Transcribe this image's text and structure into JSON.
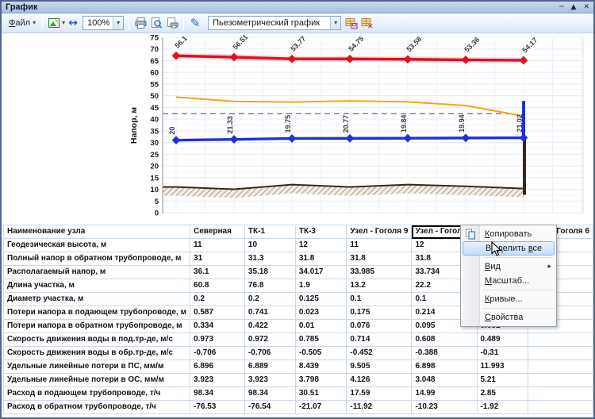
{
  "window": {
    "title": "График",
    "minimize_glyph": "─",
    "dock_glyph": "▲",
    "close_glyph": "✕"
  },
  "toolbar": {
    "file_button": {
      "pre": "",
      "key": "Ф",
      "rest": "айл"
    },
    "dropdown_glyph": "▾",
    "fit_width_glyph": "↔",
    "edit_glyph": "✎",
    "zoom_value": "100%",
    "graph_type_value": "Пьезометрический график"
  },
  "chart_data": {
    "type": "line",
    "title": "",
    "xlabel": "",
    "ylabel": "Напор, м",
    "ylim": [
      0,
      75
    ],
    "ytick_step": 5,
    "grid": true,
    "x_categories": [
      "Северная",
      "ТК-1",
      "ТК-3",
      "Узел - Гоголя 9",
      "Узел - Гоголя 9",
      "",
      "Узел - Гоголя 6"
    ],
    "series": [
      {
        "name": "supply-head-line",
        "color": "#e0101f",
        "marker": "diamond",
        "label_rotation": -45,
        "values": [
          67.1,
          66.51,
          65.77,
          65.75,
          65.58,
          65.36,
          65.17
        ],
        "labels": [
          "56.1",
          "56.51",
          "53.77",
          "54.75",
          "53.58",
          "53.36",
          "54.17"
        ]
      },
      {
        "name": "return-head-line",
        "color": "#2130d6",
        "marker": "diamond",
        "label_rotation": -90,
        "values": [
          31,
          31.33,
          31.75,
          31.77,
          31.84,
          31.94,
          32.02
        ],
        "labels": [
          "20",
          "21.33",
          "19.75",
          "20.77",
          "19.84",
          "19.94",
          "21.02"
        ]
      },
      {
        "name": "available-head-line",
        "color": "#f6a21d",
        "marker": "none",
        "values": [
          49.4,
          47.6,
          47.3,
          47.8,
          47.4,
          45.8,
          41.3
        ],
        "labels": []
      },
      {
        "name": "ground-profile",
        "color": "#3a281e",
        "marker": "none",
        "fill": "hatch",
        "values": [
          11,
          10,
          12,
          11,
          12,
          11.3,
          10.3
        ],
        "labels": []
      }
    ],
    "reference_line": {
      "value": 42.3,
      "color": "#4f81bd",
      "style": "dashed"
    },
    "end_risers": [
      {
        "name": "end-riser-blue",
        "color": "#2130d6",
        "from": 31.8,
        "to": 47.8
      },
      {
        "name": "end-riser-brown",
        "color": "#3a281e",
        "from": 32,
        "to": 10.3
      }
    ]
  },
  "table": {
    "selected_cell": {
      "row": 0,
      "col": 4
    },
    "rows": [
      {
        "label": "Наименование узла",
        "values": [
          "Северная",
          "ТК-1",
          "ТК-3",
          "Узел - Гоголя 9",
          "Узел - Гоголя 9",
          "",
          "Узел - Гоголя 6"
        ]
      },
      {
        "label": "Геодезическая высота, м",
        "values": [
          "11",
          "10",
          "12",
          "11",
          "12",
          "",
          ""
        ]
      },
      {
        "label": "Полный напор в обратном трубопроводе, м",
        "values": [
          "31",
          "31.3",
          "31.8",
          "31.8",
          "31.8",
          "",
          ""
        ]
      },
      {
        "label": "Располагаемый напор, м",
        "values": [
          "36.1",
          "35.18",
          "34.017",
          "33.985",
          "33.734",
          "",
          ""
        ]
      },
      {
        "label": "Длина участка, м",
        "values": [
          "60.8",
          "76.8",
          "1.9",
          "13.2",
          "22.2",
          "",
          ""
        ]
      },
      {
        "label": "Диаметр участка, м",
        "values": [
          "0.2",
          "0.2",
          "0.125",
          "0.1",
          "0.1",
          "",
          ""
        ]
      },
      {
        "label": "Потери напора в подающем трубопроводе, м",
        "values": [
          "0.587",
          "0.741",
          "0.023",
          "0.175",
          "0.214",
          "",
          ""
        ]
      },
      {
        "label": "Потери напора в обратном трубопроводе, м",
        "values": [
          "0.334",
          "0.422",
          "0.01",
          "0.076",
          "0.095",
          "0.081",
          ""
        ]
      },
      {
        "label": "Скорость движения воды в под.тр-де, м/с",
        "values": [
          "0.973",
          "0.972",
          "0.785",
          "0.714",
          "0.608",
          "0.489",
          ""
        ]
      },
      {
        "label": "Скорость движения воды в обр.тр-де, м/с",
        "values": [
          "-0.706",
          "-0.706",
          "-0.505",
          "-0.452",
          "-0.388",
          "-0.31",
          ""
        ]
      },
      {
        "label": "Удельные линейные потери в ПС, мм/м",
        "values": [
          "6.896",
          "6.889",
          "8.439",
          "9.505",
          "6.898",
          "11.993",
          ""
        ]
      },
      {
        "label": "Удельные линейные потери в ОС, мм/м",
        "values": [
          "3.923",
          "3.923",
          "3.798",
          "4.126",
          "3.048",
          "5.21",
          ""
        ]
      },
      {
        "label": "Расход в подающем трубопроводе, т/ч",
        "values": [
          "98.34",
          "98.34",
          "30.51",
          "17.59",
          "14.99",
          "2.85",
          ""
        ]
      },
      {
        "label": "Расход в обратном трубопроводе, т/ч",
        "values": [
          "-76.53",
          "-76.54",
          "-21.07",
          "-11.92",
          "-10.23",
          "-1.92",
          ""
        ]
      }
    ]
  },
  "context_menu": {
    "submenu_glyph": "▸",
    "items": [
      {
        "type": "item",
        "name": "menu-item-copy",
        "pre": "",
        "key": "К",
        "rest": "опировать",
        "icon": "copy-icon"
      },
      {
        "type": "item",
        "name": "menu-item-select-all",
        "pre": "Выделить ",
        "key": "в",
        "rest": "се",
        "highlighted": true
      },
      {
        "type": "separator"
      },
      {
        "type": "item",
        "name": "menu-item-view",
        "pre": "",
        "key": "В",
        "rest": "ид",
        "submenu": true
      },
      {
        "type": "item",
        "name": "menu-item-scale",
        "pre": "",
        "key": "М",
        "rest": "асштаб..."
      },
      {
        "type": "separator"
      },
      {
        "type": "item",
        "name": "menu-item-curves",
        "pre": "",
        "key": "К",
        "rest": "ривые..."
      },
      {
        "type": "separator"
      },
      {
        "type": "item",
        "name": "menu-item-properties",
        "pre": "",
        "key": "С",
        "rest": "войства"
      }
    ]
  }
}
